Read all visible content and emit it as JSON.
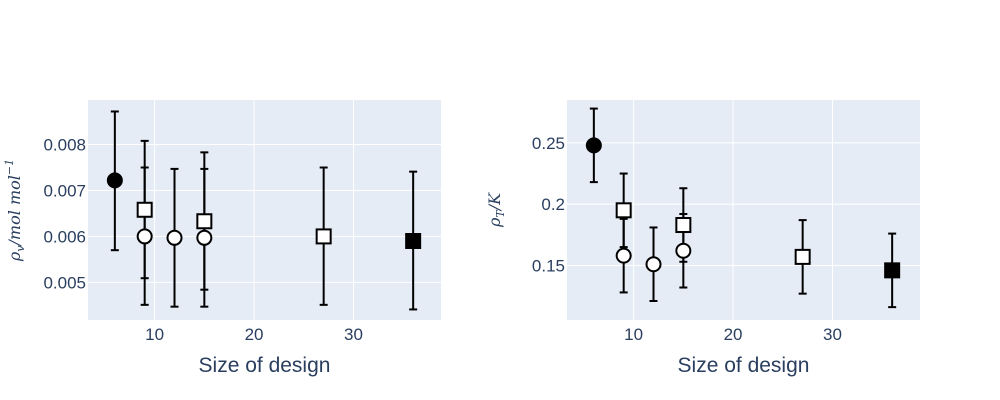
{
  "chart_data": [
    {
      "type": "scatter",
      "xlabel": "Size of design",
      "ylabel": {
        "symbol": "ρ",
        "sub": "v",
        "rest": "/mol mol",
        "sup": "−1"
      },
      "xlim": [
        3.3,
        38.8
      ],
      "ylim": [
        0.00418,
        0.00897
      ],
      "xticks": [
        10,
        20,
        30
      ],
      "xtick_labels": [
        "10",
        "20",
        "30"
      ],
      "yticks": [
        0.005,
        0.006,
        0.007,
        0.008
      ],
      "ytick_labels": [
        "0.005",
        "0.006",
        "0.007",
        "0.008"
      ],
      "grid": true,
      "points": [
        {
          "x": 6,
          "y": 0.00722,
          "err_low": 0.0057,
          "err_high": 0.00872,
          "marker": "circle",
          "fill": "#000000"
        },
        {
          "x": 9,
          "y": 0.00658,
          "err_low": 0.00509,
          "err_high": 0.00808,
          "marker": "square",
          "fill": "#ffffff"
        },
        {
          "x": 9,
          "y": 0.006,
          "err_low": 0.00451,
          "err_high": 0.0075,
          "marker": "circle",
          "fill": "#ffffff"
        },
        {
          "x": 12,
          "y": 0.00597,
          "err_low": 0.00447,
          "err_high": 0.00747,
          "marker": "circle",
          "fill": "#ffffff"
        },
        {
          "x": 15,
          "y": 0.00633,
          "err_low": 0.00484,
          "err_high": 0.00783,
          "marker": "square",
          "fill": "#ffffff"
        },
        {
          "x": 15,
          "y": 0.00597,
          "err_low": 0.00447,
          "err_high": 0.00747,
          "marker": "circle",
          "fill": "#ffffff"
        },
        {
          "x": 27,
          "y": 0.006,
          "err_low": 0.00451,
          "err_high": 0.0075,
          "marker": "square",
          "fill": "#ffffff"
        },
        {
          "x": 36,
          "y": 0.0059,
          "err_low": 0.00441,
          "err_high": 0.00741,
          "marker": "square",
          "fill": "#000000"
        }
      ]
    },
    {
      "type": "scatter",
      "xlabel": "Size of design",
      "ylabel": {
        "symbol": "ρ",
        "sub": "T",
        "rest": "/K",
        "sup": ""
      },
      "xlim": [
        3.3,
        38.8
      ],
      "ylim": [
        0.1055,
        0.285
      ],
      "xticks": [
        10,
        20,
        30
      ],
      "xtick_labels": [
        "10",
        "20",
        "30"
      ],
      "yticks": [
        0.15,
        0.2,
        0.25
      ],
      "ytick_labels": [
        "0.15",
        "0.2",
        "0.25"
      ],
      "grid": true,
      "points": [
        {
          "x": 6,
          "y": 0.248,
          "err_low": 0.218,
          "err_high": 0.278,
          "marker": "circle",
          "fill": "#000000"
        },
        {
          "x": 9,
          "y": 0.195,
          "err_low": 0.165,
          "err_high": 0.225,
          "marker": "square",
          "fill": "#ffffff"
        },
        {
          "x": 9,
          "y": 0.158,
          "err_low": 0.128,
          "err_high": 0.188,
          "marker": "circle",
          "fill": "#ffffff"
        },
        {
          "x": 12,
          "y": 0.151,
          "err_low": 0.121,
          "err_high": 0.181,
          "marker": "circle",
          "fill": "#ffffff"
        },
        {
          "x": 15,
          "y": 0.183,
          "err_low": 0.153,
          "err_high": 0.213,
          "marker": "square",
          "fill": "#ffffff"
        },
        {
          "x": 15,
          "y": 0.162,
          "err_low": 0.132,
          "err_high": 0.192,
          "marker": "circle",
          "fill": "#ffffff"
        },
        {
          "x": 27,
          "y": 0.157,
          "err_low": 0.127,
          "err_high": 0.187,
          "marker": "square",
          "fill": "#ffffff"
        },
        {
          "x": 36,
          "y": 0.146,
          "err_low": 0.116,
          "err_high": 0.176,
          "marker": "square",
          "fill": "#000000"
        }
      ]
    }
  ],
  "colors": {
    "plot_background": "#e5ecf6",
    "grid": "#ffffff",
    "text": "#2a3f5f",
    "marker_stroke": "#000000",
    "error_bar": "#000000"
  }
}
